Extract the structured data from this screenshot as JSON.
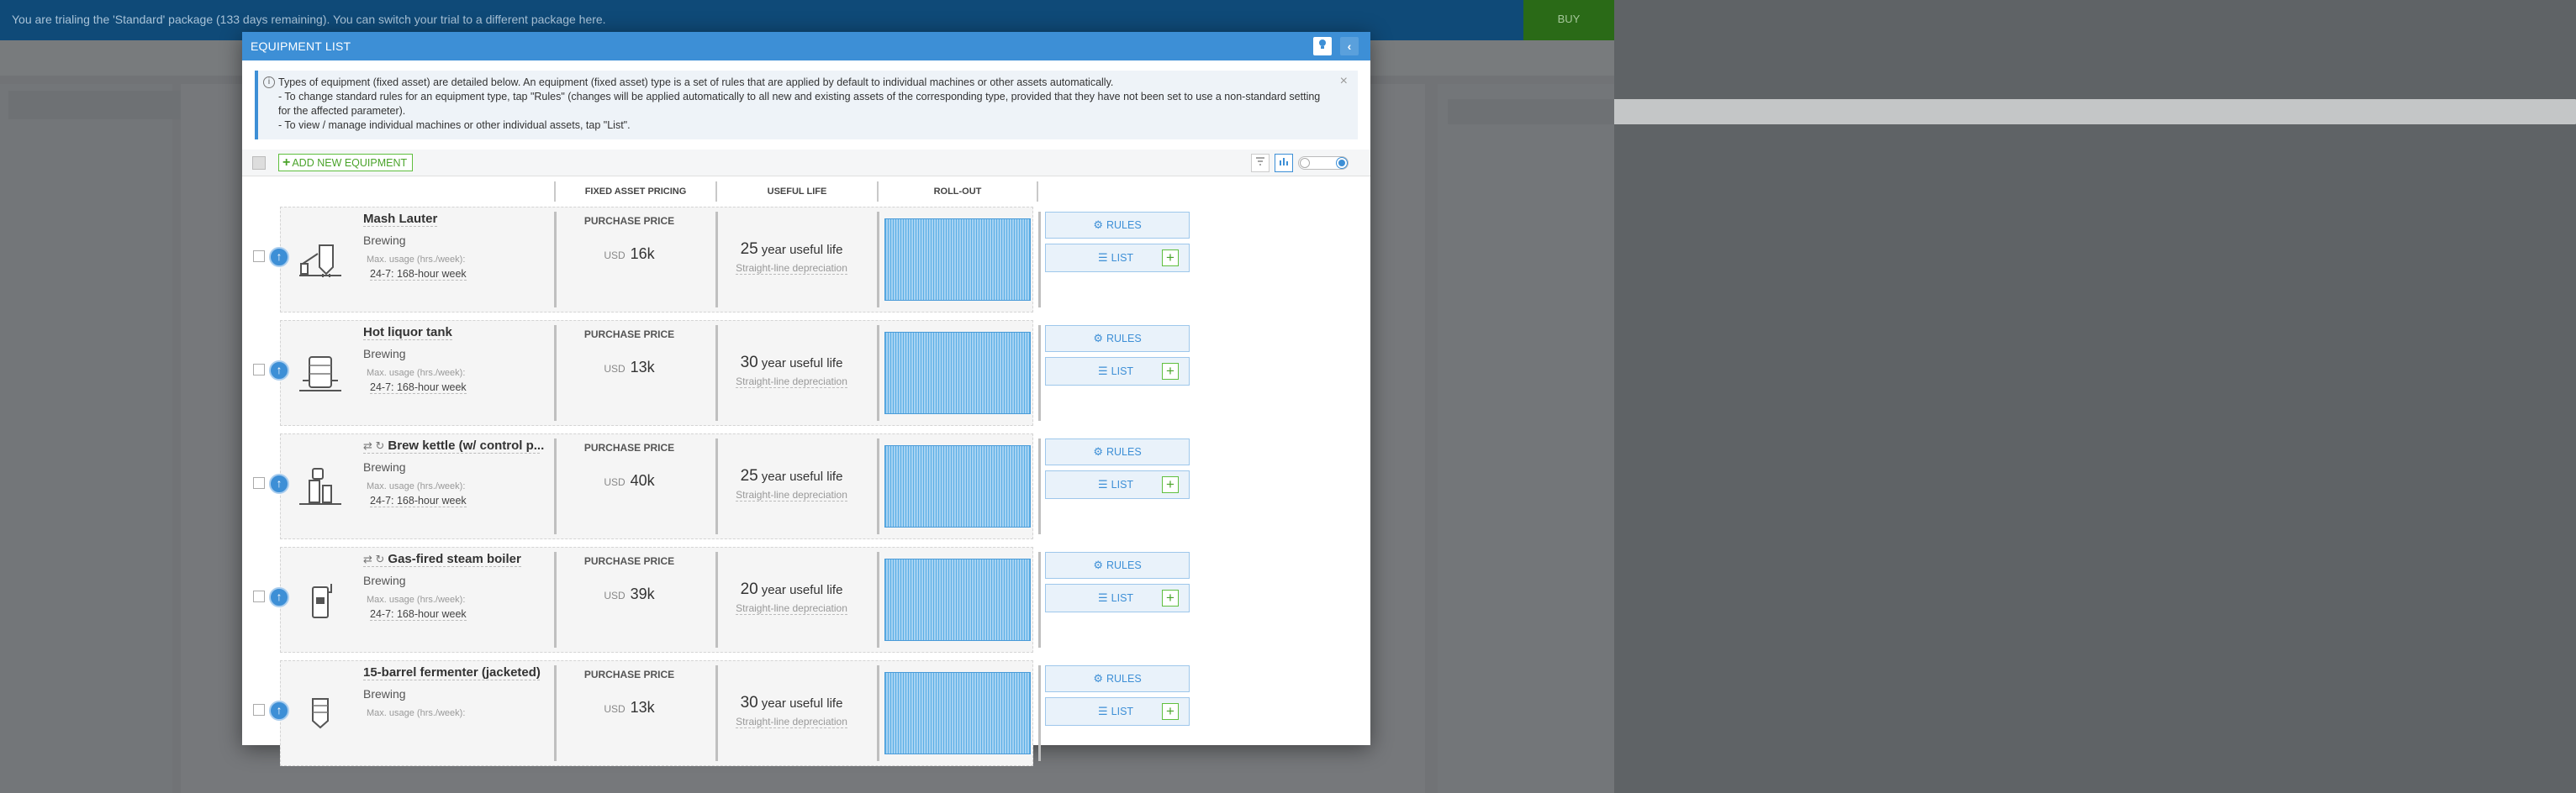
{
  "trial_banner": {
    "text": "You are trialing the 'Standard' package (133 days remaining). You can switch your trial to a different package here.",
    "buy_label": "BUY"
  },
  "dialog": {
    "title": "EQUIPMENT LIST",
    "help_icon": "lightbulb-icon",
    "back_icon": "chevron-left-icon",
    "info": {
      "line1": "Types of equipment (fixed asset) are detailed below. An equipment (fixed asset) type is a set of rules that are applied by default to individual machines or other assets automatically.",
      "line2": "- To change standard rules for an equipment type, tap \"Rules\" (changes will be applied automatically to all new and existing assets of the corresponding type, provided that they have not been set to use a non-standard setting for the affected parameter).",
      "line3": "- To view / manage individual machines or other individual assets, tap \"List\"."
    },
    "toolbar": {
      "add_label": "ADD NEW EQUIPMENT"
    },
    "columns": {
      "pricing": "FIXED ASSET PRICING",
      "life": "USEFUL LIFE",
      "rollout": "ROLL-OUT"
    },
    "row_labels": {
      "usage_label": "Max. usage (hrs./week):",
      "price_label": "PURCHASE PRICE",
      "currency": "USD",
      "life_unit": "year",
      "life_suffix": "useful life",
      "depreciation": "Straight-line depreciation",
      "rules_label": "RULES",
      "list_label": "LIST"
    },
    "rows": [
      {
        "name": "Mash Lauter",
        "category": "Brewing",
        "usage": "24-7: 168-hour week",
        "price": "16k",
        "life_years": "25",
        "icon": "mash-lauter-icon",
        "rs": ""
      },
      {
        "name": "Hot liquor tank",
        "category": "Brewing",
        "usage": "24-7: 168-hour week",
        "price": "13k",
        "life_years": "30",
        "icon": "tank-icon",
        "rs": ""
      },
      {
        "name": "Brew kettle (w/ control p...",
        "category": "Brewing",
        "usage": "24-7: 168-hour week",
        "price": "40k",
        "life_years": "25",
        "icon": "brew-kettle-icon",
        "rs": "⇄ ↻"
      },
      {
        "name": "Gas-fired steam boiler",
        "category": "Brewing",
        "usage": "24-7: 168-hour week",
        "price": "39k",
        "life_years": "20",
        "icon": "boiler-icon",
        "rs": "⇄ ↻"
      },
      {
        "name": "15-barrel fermenter (jacketed)",
        "category": "Brewing",
        "usage": "",
        "price": "13k",
        "life_years": "30",
        "icon": "fermenter-icon",
        "rs": ""
      }
    ]
  }
}
